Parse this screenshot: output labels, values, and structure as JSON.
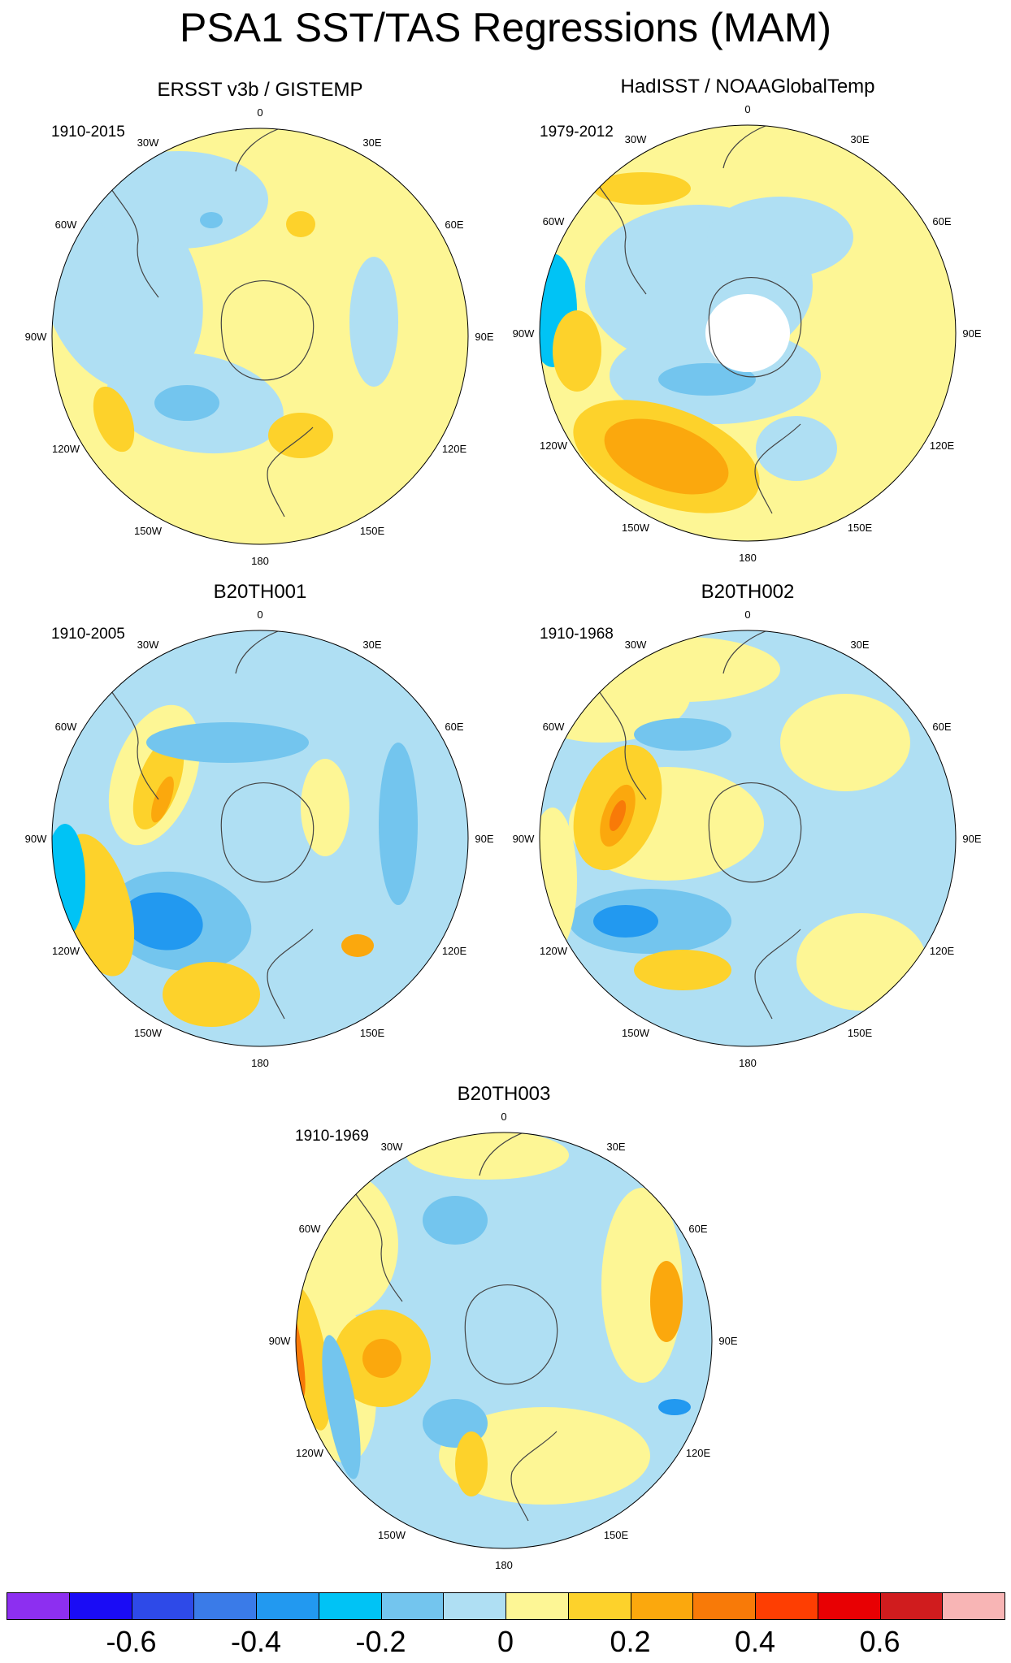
{
  "title": "PSA1 SST/TAS Regressions (MAM)",
  "longitude_labels": [
    "0",
    "30E",
    "60E",
    "90E",
    "120E",
    "150E",
    "180",
    "150W",
    "120W",
    "90W",
    "60W",
    "30W"
  ],
  "panels": [
    {
      "title": "ERSST v3b / GISTEMP",
      "period": "1910-2015"
    },
    {
      "title": "HadISST / NOAAGlobalTemp",
      "period": "1979-2012"
    },
    {
      "title": "B20TH001",
      "period": "1910-2005"
    },
    {
      "title": "B20TH002",
      "period": "1910-1968"
    },
    {
      "title": "B20TH003",
      "period": "1910-1969"
    }
  ],
  "colorbar": {
    "colors": [
      "#8d2ff0",
      "#1a0cf5",
      "#2e4ae8",
      "#3a7be8",
      "#2299f0",
      "#00c3f5",
      "#73c5ee",
      "#afdff3",
      "#fdf695",
      "#fdd22b",
      "#fba80d",
      "#f87a08",
      "#fe3e02",
      "#e80003",
      "#d01c1e",
      "#f8b5b5"
    ],
    "labels": [
      "-0.6",
      "-0.4",
      "-0.2",
      "0",
      "0.2",
      "0.4",
      "0.6"
    ]
  },
  "palette": {
    "light_blue": "#afdff3",
    "mid_blue": "#73c5ee",
    "cyan": "#00c3f5",
    "blue": "#2299f0",
    "yellow": "#fdf695",
    "gold": "#fdd22b",
    "orange": "#fba80d",
    "dark_orange": "#f87a08",
    "red": "#fe3e02",
    "land": "#ffffff",
    "coast": "#444444"
  }
}
